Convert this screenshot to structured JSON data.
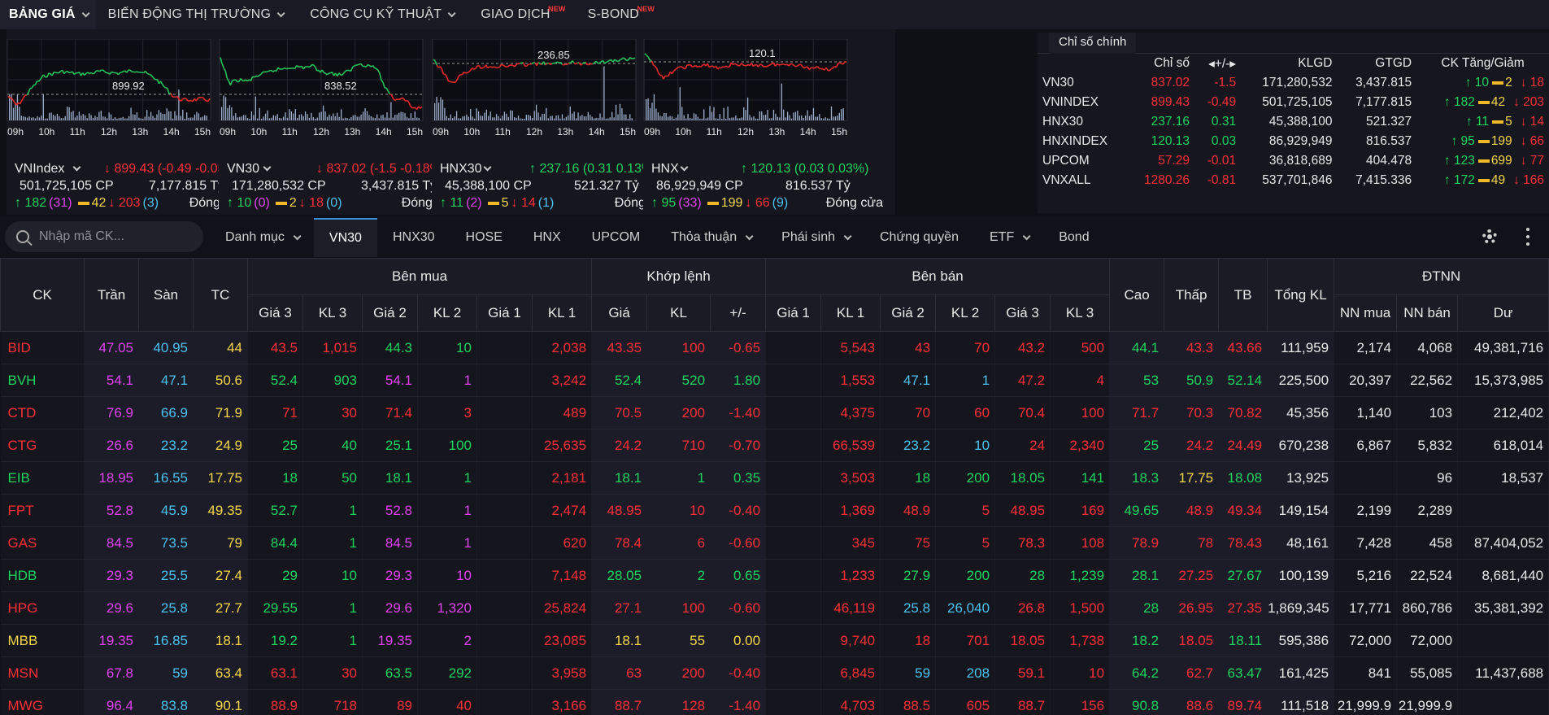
{
  "nav": [
    {
      "label": "BẢNG GIÁ",
      "chevron": true,
      "new": false,
      "active": true
    },
    {
      "label": "BIẾN ĐỘNG THỊ TRƯỜNG",
      "chevron": true,
      "new": false
    },
    {
      "label": "CÔNG CỤ KỸ THUẬT",
      "chevron": true,
      "new": false
    },
    {
      "label": "GIAO DỊCH",
      "chevron": false,
      "new": true
    },
    {
      "label": "S-BOND",
      "chevron": false,
      "new": true
    }
  ],
  "new_badge": "NEW",
  "time_labels": [
    "09h",
    "10h",
    "11h",
    "12h",
    "13h",
    "14h",
    "15h"
  ],
  "indices": [
    {
      "name": "VNIndex",
      "change_text": "↓ 899.43 (-0.49 -0.05%)",
      "dir": "dn",
      "volume": "501,725,105 CP",
      "value": "7,177.815 Tỷ",
      "ref_label": "899.92",
      "up": "↑ 182",
      "ceil": "(31)",
      "ref": "42",
      "dn": "↓ 203",
      "floor": "(3)",
      "status": "Đóng cửa"
    },
    {
      "name": "VN30",
      "change_text": "↓ 837.02 (-1.5 -0.18%)",
      "dir": "dn",
      "volume": "171,280,532 CP",
      "value": "3,437.815 Tỷ",
      "ref_label": "838.52",
      "up": "↑ 10",
      "ceil": "(0)",
      "ref": "2",
      "dn": "↓ 18",
      "floor": "(0)",
      "status": "Đóng cửa"
    },
    {
      "name": "HNX30",
      "change_text": "↑ 237.16 (0.31 0.13%)",
      "dir": "up",
      "volume": "45,388,100 CP",
      "value": "521.327 Tỷ",
      "ref_label": "236.85",
      "up": "↑ 11",
      "ceil": "(2)",
      "ref": "5",
      "dn": "↓ 14",
      "floor": "(1)",
      "status": "Đóng cửa"
    },
    {
      "name": "HNX",
      "change_text": "↑ 120.13 (0.03 0.03%)",
      "dir": "up",
      "volume": "86,929,949 CP",
      "value": "816.537 Tỷ",
      "ref_label": "120.1",
      "up": "↑ 95",
      "ceil": "(33)",
      "ref": "199",
      "dn": "↓ 66",
      "floor": "(9)",
      "status": "Đóng cửa"
    }
  ],
  "main_indices": {
    "tab": "Chỉ số chính",
    "headers": [
      "",
      "Chỉ số",
      "◂+/-▸",
      "KLGD",
      "GTGD",
      "CK Tăng/Giảm"
    ],
    "rows": [
      {
        "name": "VN30",
        "index": "837.02",
        "dir": "dn",
        "change": "-1.5",
        "klgd": "171,280,532",
        "gtgd": "3,437.815",
        "up": "↑ 10",
        "ref": "2",
        "dn": "↓ 18"
      },
      {
        "name": "VNINDEX",
        "index": "899.43",
        "dir": "dn",
        "change": "-0.49",
        "klgd": "501,725,105",
        "gtgd": "7,177.815",
        "up": "↑ 182",
        "ref": "42",
        "dn": "↓ 203"
      },
      {
        "name": "HNX30",
        "index": "237.16",
        "dir": "up",
        "change": "0.31",
        "klgd": "45,388,100",
        "gtgd": "521.327",
        "up": "↑ 11",
        "ref": "5",
        "dn": "↓ 14"
      },
      {
        "name": "HNXINDEX",
        "index": "120.13",
        "dir": "up",
        "change": "0.03",
        "klgd": "86,929,949",
        "gtgd": "816.537",
        "up": "↑ 95",
        "ref": "199",
        "dn": "↓ 66"
      },
      {
        "name": "UPCOM",
        "index": "57.29",
        "dir": "dn",
        "change": "-0.01",
        "klgd": "36,818,689",
        "gtgd": "404.478",
        "up": "↑ 123",
        "ref": "699",
        "dn": "↓ 77"
      },
      {
        "name": "VNXALL",
        "index": "1280.26",
        "dir": "dn",
        "change": "-0.81",
        "klgd": "537,701,846",
        "gtgd": "7,415.336",
        "up": "↑ 172",
        "ref": "49",
        "dn": "↓ 166"
      }
    ]
  },
  "search": {
    "placeholder": "Nhập mã CK..."
  },
  "tabs": [
    {
      "label": "Danh mục",
      "chevron": true
    },
    {
      "label": "VN30",
      "chevron": false,
      "active": true
    },
    {
      "label": "HNX30",
      "chevron": false
    },
    {
      "label": "HOSE",
      "chevron": false
    },
    {
      "label": "HNX",
      "chevron": false
    },
    {
      "label": "UPCOM",
      "chevron": false
    },
    {
      "label": "Thỏa thuận",
      "chevron": true
    },
    {
      "label": "Phái sinh",
      "chevron": true
    },
    {
      "label": "Chứng quyền",
      "chevron": false
    },
    {
      "label": "ETF",
      "chevron": true
    },
    {
      "label": "Bond",
      "chevron": false
    }
  ],
  "board": {
    "groups": {
      "ck": "CK",
      "tran": "Trần",
      "san": "Sàn",
      "tc": "TC",
      "buy": "Bên mua",
      "match": "Khớp lệnh",
      "sell": "Bên bán",
      "high": "Cao",
      "low": "Thấp",
      "avg": "TB",
      "total": "Tổng KL",
      "foreign": "ĐTNN"
    },
    "sub": [
      "Giá 3",
      "KL 3",
      "Giá 2",
      "KL 2",
      "Giá 1",
      "KL 1",
      "Giá",
      "KL",
      "+/-",
      "Giá 1",
      "KL 1",
      "Giá 2",
      "KL 2",
      "Giá 3",
      "KL 3",
      "NN mua",
      "NN bán",
      "Dư"
    ],
    "rows": [
      {
        "sym": "BID",
        "symc": "dn",
        "ceil": "47.05",
        "floor": "40.95",
        "ref": "44",
        "b3": [
          "43.5",
          "dn"
        ],
        "v3": "1,015",
        "b2": [
          "44.3",
          "up"
        ],
        "v2": "10",
        "b1": [
          "",
          ""
        ],
        "v1": "2,038",
        "m": [
          "43.35",
          "dn"
        ],
        "mv": "100",
        "mc": "-0.65",
        "s1": [
          "",
          "dn"
        ],
        "w1": "5,543",
        "s2": [
          "43",
          "dn"
        ],
        "w2": "70",
        "s3": [
          "43.2",
          "dn"
        ],
        "w3": "500",
        "hi": [
          "44.1",
          "up"
        ],
        "lo": [
          "43.3",
          "dn"
        ],
        "avg": [
          "43.66",
          "dn"
        ],
        "tot": "111,959",
        "fb": "2,174",
        "fs": "4,068",
        "room": "49,381,716"
      },
      {
        "sym": "BVH",
        "symc": "up",
        "ceil": "54.1",
        "floor": "47.1",
        "ref": "50.6",
        "b3": [
          "52.4",
          "up"
        ],
        "v3": "903",
        "b2": [
          "54.1",
          "ceil"
        ],
        "v2": "1",
        "b1": [
          "",
          "dn"
        ],
        "v1": "3,242",
        "m": [
          "52.4",
          "up"
        ],
        "mv": "520",
        "mc": "1.80",
        "s1": [
          "",
          "dn"
        ],
        "w1": "1,553",
        "s2": [
          "47.1",
          "floor"
        ],
        "w2": "1",
        "s3": [
          "47.2",
          "dn"
        ],
        "w3": "4",
        "hi": [
          "53",
          "up"
        ],
        "lo": [
          "50.9",
          "up"
        ],
        "avg": [
          "52.14",
          "up"
        ],
        "tot": "225,500",
        "fb": "20,397",
        "fs": "22,562",
        "room": "15,373,985"
      },
      {
        "sym": "CTD",
        "symc": "dn",
        "ceil": "76.9",
        "floor": "66.9",
        "ref": "71.9",
        "b3": [
          "71",
          "dn"
        ],
        "v3": "30",
        "b2": [
          "71.4",
          "dn"
        ],
        "v2": "3",
        "b1": [
          "",
          "dn"
        ],
        "v1": "489",
        "m": [
          "70.5",
          "dn"
        ],
        "mv": "200",
        "mc": "-1.40",
        "s1": [
          "",
          "dn"
        ],
        "w1": "4,375",
        "s2": [
          "70",
          "dn"
        ],
        "w2": "60",
        "s3": [
          "70.4",
          "dn"
        ],
        "w3": "100",
        "hi": [
          "71.7",
          "dn"
        ],
        "lo": [
          "70.3",
          "dn"
        ],
        "avg": [
          "70.82",
          "dn"
        ],
        "tot": "45,356",
        "fb": "1,140",
        "fs": "103",
        "room": "212,402"
      },
      {
        "sym": "CTG",
        "symc": "dn",
        "ceil": "26.6",
        "floor": "23.2",
        "ref": "24.9",
        "b3": [
          "25",
          "up"
        ],
        "v3": "40",
        "b2": [
          "25.1",
          "up"
        ],
        "v2": "100",
        "b1": [
          "",
          "dn"
        ],
        "v1": "25,635",
        "m": [
          "24.2",
          "dn"
        ],
        "mv": "710",
        "mc": "-0.70",
        "s1": [
          "",
          "dn"
        ],
        "w1": "66,539",
        "s2": [
          "23.2",
          "floor"
        ],
        "w2": "10",
        "s3": [
          "24",
          "dn"
        ],
        "w3": "2,340",
        "hi": [
          "25",
          "up"
        ],
        "lo": [
          "24.2",
          "dn"
        ],
        "avg": [
          "24.49",
          "dn"
        ],
        "tot": "670,238",
        "fb": "6,867",
        "fs": "5,832",
        "room": "618,014"
      },
      {
        "sym": "EIB",
        "symc": "up",
        "ceil": "18.95",
        "floor": "16.55",
        "ref": "17.75",
        "b3": [
          "18",
          "up"
        ],
        "v3": "50",
        "b2": [
          "18.1",
          "up"
        ],
        "v2": "1",
        "b1": [
          "",
          "dn"
        ],
        "v1": "2,181",
        "m": [
          "18.1",
          "up"
        ],
        "mv": "1",
        "mc": "0.35",
        "s1": [
          "",
          "dn"
        ],
        "w1": "3,503",
        "s2": [
          "18",
          "up"
        ],
        "w2": "200",
        "s3": [
          "18.05",
          "up"
        ],
        "w3": "141",
        "hi": [
          "18.3",
          "up"
        ],
        "lo": [
          "17.75",
          "ref"
        ],
        "avg": [
          "18.08",
          "up"
        ],
        "tot": "13,925",
        "fb": "",
        "fs": "96",
        "room": "18,537"
      },
      {
        "sym": "FPT",
        "symc": "dn",
        "ceil": "52.8",
        "floor": "45.9",
        "ref": "49.35",
        "b3": [
          "52.7",
          "up"
        ],
        "v3": "1",
        "b2": [
          "52.8",
          "ceil"
        ],
        "v2": "1",
        "b1": [
          "",
          "dn"
        ],
        "v1": "2,474",
        "m": [
          "48.95",
          "dn"
        ],
        "mv": "10",
        "mc": "-0.40",
        "s1": [
          "",
          "dn"
        ],
        "w1": "1,369",
        "s2": [
          "48.9",
          "dn"
        ],
        "w2": "5",
        "s3": [
          "48.95",
          "dn"
        ],
        "w3": "169",
        "hi": [
          "49.65",
          "up"
        ],
        "lo": [
          "48.9",
          "dn"
        ],
        "avg": [
          "49.34",
          "dn"
        ],
        "tot": "149,154",
        "fb": "2,199",
        "fs": "2,289",
        "room": ""
      },
      {
        "sym": "GAS",
        "symc": "dn",
        "ceil": "84.5",
        "floor": "73.5",
        "ref": "79",
        "b3": [
          "84.4",
          "up"
        ],
        "v3": "1",
        "b2": [
          "84.5",
          "ceil"
        ],
        "v2": "1",
        "b1": [
          "",
          "dn"
        ],
        "v1": "620",
        "m": [
          "78.4",
          "dn"
        ],
        "mv": "6",
        "mc": "-0.60",
        "s1": [
          "",
          "dn"
        ],
        "w1": "345",
        "s2": [
          "75",
          "dn"
        ],
        "w2": "5",
        "s3": [
          "78.3",
          "dn"
        ],
        "w3": "108",
        "hi": [
          "78.9",
          "dn"
        ],
        "lo": [
          "78",
          "dn"
        ],
        "avg": [
          "78.43",
          "dn"
        ],
        "tot": "48,161",
        "fb": "7,428",
        "fs": "458",
        "room": "87,404,052"
      },
      {
        "sym": "HDB",
        "symc": "up",
        "ceil": "29.3",
        "floor": "25.5",
        "ref": "27.4",
        "b3": [
          "29",
          "up"
        ],
        "v3": "10",
        "b2": [
          "29.3",
          "ceil"
        ],
        "v2": "10",
        "b1": [
          "",
          "dn"
        ],
        "v1": "7,148",
        "m": [
          "28.05",
          "up"
        ],
        "mv": "2",
        "mc": "0.65",
        "s1": [
          "",
          "dn"
        ],
        "w1": "1,233",
        "s2": [
          "27.9",
          "up"
        ],
        "w2": "200",
        "s3": [
          "28",
          "up"
        ],
        "w3": "1,239",
        "hi": [
          "28.1",
          "up"
        ],
        "lo": [
          "27.25",
          "dn"
        ],
        "avg": [
          "27.67",
          "up"
        ],
        "tot": "100,139",
        "fb": "5,216",
        "fs": "22,524",
        "room": "8,681,440"
      },
      {
        "sym": "HPG",
        "symc": "dn",
        "ceil": "29.6",
        "floor": "25.8",
        "ref": "27.7",
        "b3": [
          "29.55",
          "up"
        ],
        "v3": "1",
        "b2": [
          "29.6",
          "ceil"
        ],
        "v2": "1,320",
        "b1": [
          "",
          "dn"
        ],
        "v1": "25,824",
        "m": [
          "27.1",
          "dn"
        ],
        "mv": "100",
        "mc": "-0.60",
        "s1": [
          "",
          "dn"
        ],
        "w1": "46,119",
        "s2": [
          "25.8",
          "floor"
        ],
        "w2": "26,040",
        "s3": [
          "26.8",
          "dn"
        ],
        "w3": "1,500",
        "hi": [
          "28",
          "up"
        ],
        "lo": [
          "26.95",
          "dn"
        ],
        "avg": [
          "27.35",
          "dn"
        ],
        "tot": "1,869,345",
        "fb": "17,771",
        "fs": "860,786",
        "room": "35,381,392"
      },
      {
        "sym": "MBB",
        "symc": "ref",
        "ceil": "19.35",
        "floor": "16.85",
        "ref": "18.1",
        "b3": [
          "19.2",
          "up"
        ],
        "v3": "1",
        "b2": [
          "19.35",
          "ceil"
        ],
        "v2": "2",
        "b1": [
          "",
          "dn"
        ],
        "v1": "23,085",
        "m": [
          "18.1",
          "ref"
        ],
        "mv": "55",
        "mc": "0.00",
        "s1": [
          "",
          "dn"
        ],
        "w1": "9,740",
        "s2": [
          "18",
          "dn"
        ],
        "w2": "701",
        "s3": [
          "18.05",
          "dn"
        ],
        "w3": "1,738",
        "hi": [
          "18.2",
          "up"
        ],
        "lo": [
          "18.05",
          "dn"
        ],
        "avg": [
          "18.11",
          "up"
        ],
        "tot": "595,386",
        "fb": "72,000",
        "fs": "72,000",
        "room": ""
      },
      {
        "sym": "MSN",
        "symc": "dn",
        "ceil": "67.8",
        "floor": "59",
        "ref": "63.4",
        "b3": [
          "63.1",
          "dn"
        ],
        "v3": "30",
        "b2": [
          "63.5",
          "up"
        ],
        "v2": "292",
        "b1": [
          "",
          "dn"
        ],
        "v1": "3,958",
        "m": [
          "63",
          "dn"
        ],
        "mv": "200",
        "mc": "-0.40",
        "s1": [
          "",
          "dn"
        ],
        "w1": "6,845",
        "s2": [
          "59",
          "floor"
        ],
        "w2": "208",
        "s3": [
          "59.1",
          "dn"
        ],
        "w3": "10",
        "hi": [
          "64.2",
          "up"
        ],
        "lo": [
          "62.7",
          "dn"
        ],
        "avg": [
          "63.47",
          "up"
        ],
        "tot": "161,425",
        "fb": "841",
        "fs": "55,085",
        "room": "11,437,688"
      },
      {
        "sym": "MWG",
        "symc": "dn",
        "ceil": "96.4",
        "floor": "83.8",
        "ref": "90.1",
        "b3": [
          "88.9",
          "dn"
        ],
        "v3": "718",
        "b2": [
          "89",
          "dn"
        ],
        "v2": "40",
        "b1": [
          "",
          "dn"
        ],
        "v1": "3,166",
        "m": [
          "88.7",
          "dn"
        ],
        "mv": "128",
        "mc": "-1.40",
        "s1": [
          "",
          "dn"
        ],
        "w1": "4,703",
        "s2": [
          "88.5",
          "dn"
        ],
        "w2": "605",
        "s3": [
          "88.7",
          "dn"
        ],
        "w3": "156",
        "hi": [
          "90.8",
          "up"
        ],
        "lo": [
          "88.6",
          "dn"
        ],
        "avg": [
          "89.74",
          "dn"
        ],
        "tot": "111,518",
        "fb": "21,999.9",
        "fs": "21,999.9",
        "room": ""
      }
    ]
  }
}
